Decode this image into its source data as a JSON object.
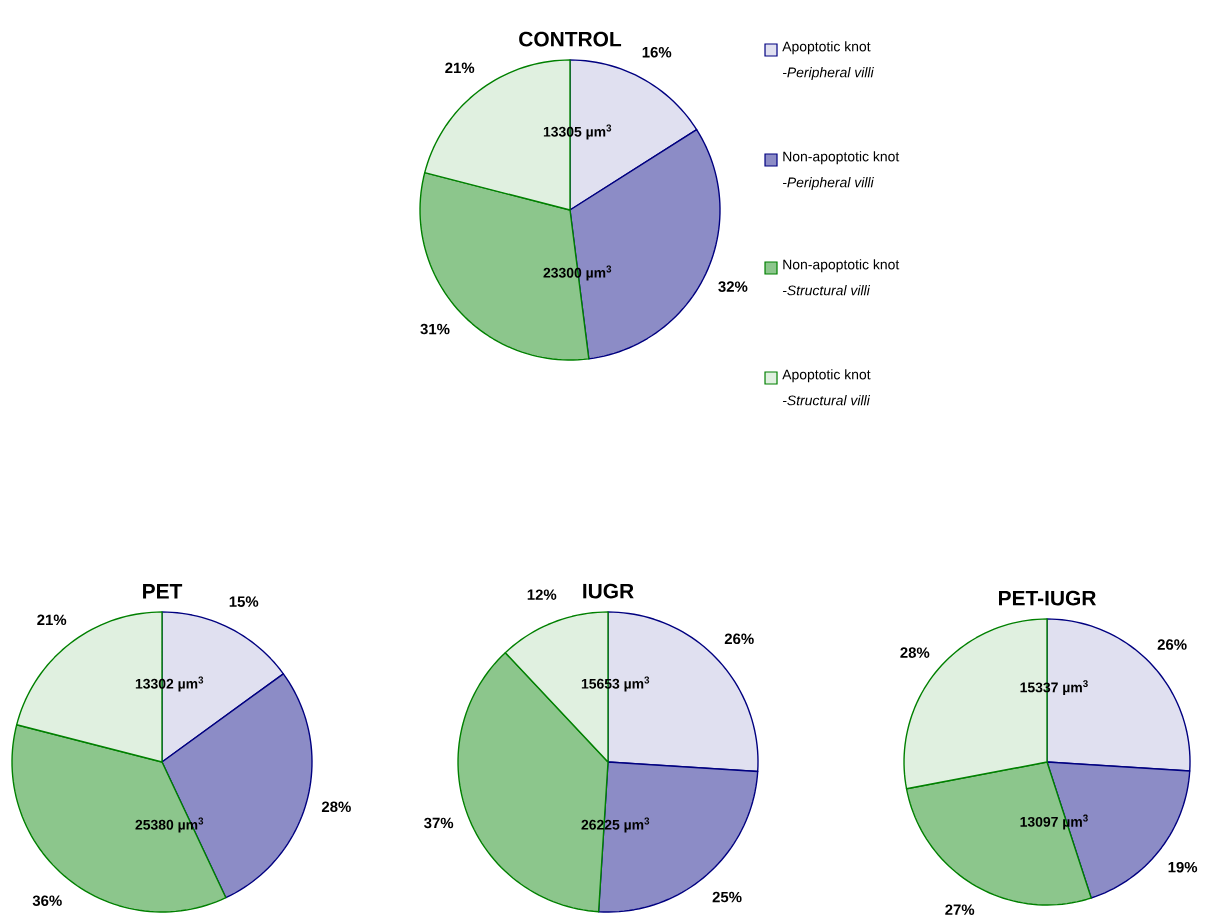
{
  "chart_data": [
    {
      "type": "pie",
      "title": "CONTROL",
      "categories": [
        "Apoptotic knot *-Peripheral villi*",
        "Non-apoptotic knot *-Peripheral villi*",
        "Non-apoptotic knot *-Structural villi*",
        "Apoptotic knot *-Structural villi*"
      ],
      "values": [
        16,
        32,
        31,
        21
      ],
      "value_labels": [
        "16%",
        "32%",
        "31%",
        "21%"
      ],
      "colors": [
        "#000080",
        "#000080",
        "#008000",
        "#008000"
      ],
      "annotations": [
        "13305 µm$^{3}$",
        "23300 µm$^{3}$"
      ],
      "legend": "right"
    },
    {
      "type": "pie",
      "title": "PET",
      "categories": [
        null,
        null,
        null,
        null
      ],
      "values": [
        15,
        28,
        36,
        21
      ],
      "value_labels": [
        "15%",
        "28%",
        "36%",
        "21%"
      ],
      "colors": [
        "#000080",
        "#000080",
        "#008000",
        "#008000"
      ],
      "annotations": [
        "13302 µm$^{3}$",
        "25380 µm$^{3}$"
      ]
    },
    {
      "type": "pie",
      "title": "IUGR",
      "categories": [
        null,
        null,
        null,
        null
      ],
      "values": [
        26,
        25,
        37,
        12
      ],
      "value_labels": [
        "26%",
        "25%",
        "37%",
        "12%"
      ],
      "colors": [
        "#000080",
        "#000080",
        "#008000",
        "#008000"
      ],
      "annotations": [
        "15653 µm$^{3}$",
        "26225 µm$^{3}$"
      ]
    },
    {
      "type": "pie",
      "title": "PET-IUGR",
      "categories": [
        null,
        null,
        null,
        null
      ],
      "values": [
        26,
        19,
        27,
        28
      ],
      "value_labels": [
        "26%",
        "19%",
        "27%",
        "28%"
      ],
      "colors": [
        "#000080",
        "#000080",
        "#008000",
        "#008000"
      ],
      "annotations": [
        "15337 µm$^{3}$",
        "13097 µm$^{3}$"
      ]
    }
  ]
}
